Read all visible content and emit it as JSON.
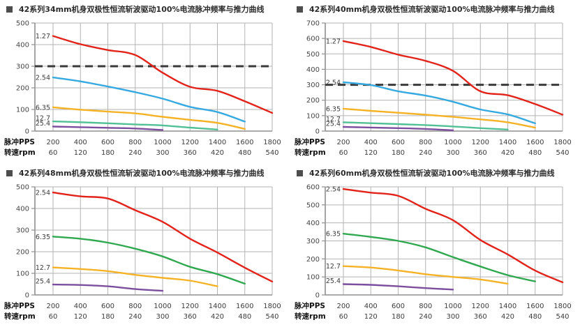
{
  "axis_labels": {
    "pps_row": "脉冲PPS",
    "rpm_row": "转速rpm"
  },
  "chart_data": [
    {
      "type": "line",
      "title": "42系列34mm机身双极性恒流斩波驱动100%电流脉冲频率与推力曲线",
      "ylim": [
        0,
        500
      ],
      "ystep": 100,
      "ref_line": 300,
      "grid": true,
      "x_ticks_pps": [
        200,
        400,
        600,
        800,
        1000,
        1200,
        1400,
        1600,
        1800
      ],
      "x_ticks_rpm": [
        60,
        120,
        180,
        240,
        300,
        360,
        420,
        480,
        540
      ],
      "series": [
        {
          "name": "1.27",
          "color": "#e2231a",
          "x": [
            200,
            400,
            600,
            800,
            1000,
            1200,
            1400,
            1600,
            1800
          ],
          "values": [
            440,
            402,
            375,
            352,
            270,
            205,
            186,
            138,
            84
          ]
        },
        {
          "name": "2.54",
          "color": "#36a9e1",
          "x": [
            200,
            400,
            600,
            800,
            1000,
            1200,
            1400,
            1600
          ],
          "values": [
            248,
            230,
            206,
            180,
            150,
            112,
            88,
            44
          ]
        },
        {
          "name": "6.35",
          "color": "#f5b226",
          "x": [
            200,
            400,
            600,
            800,
            1000,
            1200,
            1400,
            1600
          ],
          "values": [
            110,
            99,
            90,
            82,
            66,
            52,
            38,
            10
          ]
        },
        {
          "name": "12.7",
          "color": "#52c095",
          "x": [
            200,
            400,
            600,
            800,
            1000,
            1200,
            1400
          ],
          "values": [
            45,
            41,
            36,
            31,
            26,
            16,
            7
          ]
        },
        {
          "name": "25.4",
          "color": "#7c4e9e",
          "x": [
            200,
            400,
            600,
            800,
            1000
          ],
          "values": [
            21,
            18,
            15,
            12,
            5
          ]
        }
      ]
    },
    {
      "type": "line",
      "title": "42系列40mm机身双极性恒流斩波驱动100%电流脉冲频率与推力曲线",
      "ylim": [
        0,
        700
      ],
      "ystep": 100,
      "ref_line": 300,
      "grid": true,
      "x_ticks_pps": [
        200,
        400,
        600,
        800,
        1000,
        1200,
        1400,
        1600,
        1800
      ],
      "x_ticks_rpm": [
        60,
        120,
        180,
        240,
        300,
        360,
        420,
        480,
        540
      ],
      "series": [
        {
          "name": "1.27",
          "color": "#e2231a",
          "x": [
            200,
            400,
            600,
            800,
            1000,
            1200,
            1400,
            1600,
            1800
          ],
          "values": [
            583,
            545,
            495,
            455,
            390,
            258,
            232,
            175,
            106
          ]
        },
        {
          "name": "2.54",
          "color": "#36a9e1",
          "x": [
            200,
            400,
            600,
            800,
            1000,
            1200,
            1400,
            1600
          ],
          "values": [
            316,
            298,
            258,
            230,
            190,
            140,
            108,
            50
          ]
        },
        {
          "name": "6.35",
          "color": "#f5b226",
          "x": [
            200,
            400,
            600,
            800,
            1000,
            1200,
            1400,
            1600
          ],
          "values": [
            145,
            131,
            119,
            106,
            92,
            76,
            57,
            22
          ]
        },
        {
          "name": "12.7",
          "color": "#52c095",
          "x": [
            200,
            400,
            600,
            800,
            1000,
            1200,
            1400
          ],
          "values": [
            57,
            51,
            45,
            39,
            30,
            19,
            10
          ]
        },
        {
          "name": "25.4",
          "color": "#7c4e9e",
          "x": [
            200,
            400,
            600,
            800,
            1000
          ],
          "values": [
            27,
            23,
            19,
            14,
            5
          ]
        }
      ]
    },
    {
      "type": "line",
      "title": "42系列48mm机身双极性恒流斩波驱动100%电流脉冲频率与推力曲线",
      "ylim": [
        0,
        500
      ],
      "ystep": 100,
      "ref_line": null,
      "grid": true,
      "x_ticks_pps": [
        200,
        400,
        600,
        800,
        1000,
        1200,
        1400,
        1600,
        1800
      ],
      "x_ticks_rpm": [
        60,
        120,
        180,
        240,
        300,
        360,
        420,
        480,
        540
      ],
      "series": [
        {
          "name": "2.54",
          "color": "#e2231a",
          "x": [
            200,
            400,
            600,
            800,
            1000,
            1200,
            1400,
            1600,
            1800
          ],
          "values": [
            474,
            456,
            446,
            392,
            338,
            260,
            196,
            126,
            62
          ]
        },
        {
          "name": "6.35",
          "color": "#2fa84f",
          "x": [
            200,
            400,
            600,
            800,
            1000,
            1200,
            1400,
            1600
          ],
          "values": [
            270,
            260,
            242,
            214,
            178,
            130,
            96,
            52
          ]
        },
        {
          "name": "12.7",
          "color": "#f5b226",
          "x": [
            200,
            400,
            600,
            800,
            1000,
            1200,
            1400
          ],
          "values": [
            127,
            120,
            110,
            93,
            79,
            66,
            40
          ]
        },
        {
          "name": "25.4",
          "color": "#7c4e9e",
          "x": [
            200,
            400,
            600,
            800,
            1000
          ],
          "values": [
            48,
            46,
            40,
            27,
            19
          ]
        }
      ]
    },
    {
      "type": "line",
      "title": "42系列60mm机身双极性恒流斩波驱动100%电流脉冲频率与推力曲线",
      "ylim": [
        0,
        600
      ],
      "ystep": 100,
      "ref_line": null,
      "grid": true,
      "x_ticks_pps": [
        200,
        400,
        600,
        800,
        1000,
        1200,
        1400,
        1600,
        1800
      ],
      "x_ticks_rpm": [
        60,
        120,
        180,
        240,
        300,
        360,
        420,
        480,
        540
      ],
      "series": [
        {
          "name": "2.54",
          "color": "#e2231a",
          "x": [
            200,
            400,
            600,
            800,
            1000,
            1200,
            1400,
            1600,
            1800
          ],
          "values": [
            588,
            568,
            550,
            478,
            415,
            305,
            225,
            135,
            70
          ]
        },
        {
          "name": "6.35",
          "color": "#2fa84f",
          "x": [
            200,
            400,
            600,
            800,
            1000,
            1200,
            1400,
            1600
          ],
          "values": [
            340,
            322,
            300,
            264,
            210,
            158,
            110,
            75
          ]
        },
        {
          "name": "12.7",
          "color": "#f5b226",
          "x": [
            200,
            400,
            600,
            800,
            1000,
            1200,
            1400
          ],
          "values": [
            160,
            152,
            136,
            115,
            100,
            86,
            62
          ]
        },
        {
          "name": "25.4",
          "color": "#7c4e9e",
          "x": [
            200,
            400,
            600,
            800,
            1000
          ],
          "values": [
            60,
            56,
            48,
            38,
            30
          ]
        }
      ]
    }
  ]
}
